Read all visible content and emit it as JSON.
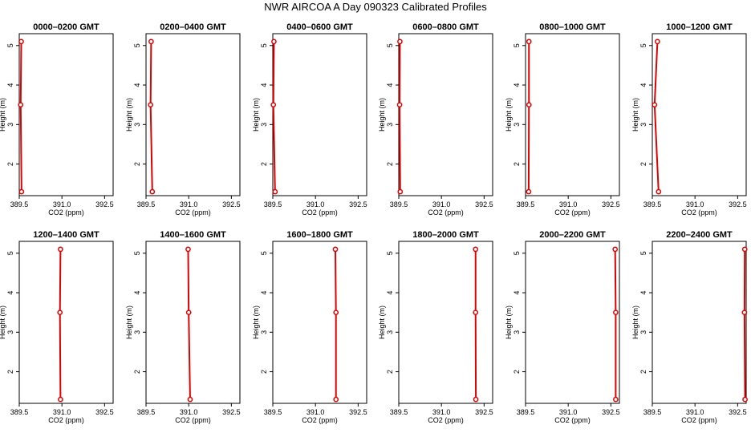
{
  "title": "NWR AIRCOA A  Day 090323  Calibrated Profiles",
  "colors": {
    "series": "#e00000",
    "frame": "#000000",
    "background": "#ffffff"
  },
  "chart_data": [
    {
      "type": "line",
      "title": "0000–0200 GMT",
      "xlabel": "CO2 (ppm)",
      "ylabel": "Height (m)",
      "xlim": [
        389.5,
        392.8
      ],
      "ylim": [
        1.2,
        5.3
      ],
      "xticks": [
        "389.5",
        "391.0",
        "392.5"
      ],
      "yticks": [
        "2",
        "3",
        "4",
        "5"
      ],
      "series": [
        {
          "x": [
            389.57,
            389.55,
            389.58
          ],
          "y": [
            5.1,
            3.5,
            1.3
          ]
        }
      ]
    },
    {
      "type": "line",
      "title": "0200–0400 GMT",
      "xlabel": "CO2 (ppm)",
      "ylabel": "Height (m)",
      "xlim": [
        389.5,
        392.8
      ],
      "ylim": [
        1.2,
        5.3
      ],
      "xticks": [
        "389.5",
        "391.0",
        "392.5"
      ],
      "yticks": [
        "2",
        "3",
        "4",
        "5"
      ],
      "series": [
        {
          "x": [
            389.68,
            389.66,
            389.72
          ],
          "y": [
            5.1,
            3.5,
            1.3
          ]
        }
      ]
    },
    {
      "type": "line",
      "title": "0400–0600 GMT",
      "xlabel": "CO2 (ppm)",
      "ylabel": "Height (m)",
      "xlim": [
        389.5,
        392.8
      ],
      "ylim": [
        1.2,
        5.3
      ],
      "xticks": [
        "389.5",
        "391.0",
        "392.5"
      ],
      "yticks": [
        "2",
        "3",
        "4",
        "5"
      ],
      "series": [
        {
          "x": [
            389.54,
            389.52,
            389.58
          ],
          "y": [
            5.1,
            3.5,
            1.3
          ]
        }
      ]
    },
    {
      "type": "line",
      "title": "0600–0800 GMT",
      "xlabel": "CO2 (ppm)",
      "ylabel": "Height (m)",
      "xlim": [
        389.5,
        392.8
      ],
      "ylim": [
        1.2,
        5.3
      ],
      "xticks": [
        "389.5",
        "391.0",
        "392.5"
      ],
      "yticks": [
        "2",
        "3",
        "4",
        "5"
      ],
      "series": [
        {
          "x": [
            389.54,
            389.53,
            389.55
          ],
          "y": [
            5.1,
            3.5,
            1.3
          ]
        }
      ]
    },
    {
      "type": "line",
      "title": "0800–1000 GMT",
      "xlabel": "CO2 (ppm)",
      "ylabel": "Height (m)",
      "xlim": [
        389.5,
        392.8
      ],
      "ylim": [
        1.2,
        5.3
      ],
      "xticks": [
        "389.5",
        "391.0",
        "392.5"
      ],
      "yticks": [
        "2",
        "3",
        "4",
        "5"
      ],
      "series": [
        {
          "x": [
            389.62,
            389.62,
            389.61
          ],
          "y": [
            5.1,
            3.5,
            1.3
          ]
        }
      ]
    },
    {
      "type": "line",
      "title": "1000–1200 GMT",
      "xlabel": "CO2 (ppm)",
      "ylabel": "Height (m)",
      "xlim": [
        389.5,
        392.8
      ],
      "ylim": [
        1.2,
        5.3
      ],
      "xticks": [
        "389.5",
        "391.0",
        "392.5"
      ],
      "yticks": [
        "2",
        "3",
        "4",
        "5"
      ],
      "series": [
        {
          "x": [
            389.68,
            389.58,
            389.72
          ],
          "y": [
            5.1,
            3.5,
            1.3
          ]
        }
      ]
    },
    {
      "type": "line",
      "title": "1200–1400 GMT",
      "xlabel": "CO2 (ppm)",
      "ylabel": "Height (m)",
      "xlim": [
        389.5,
        392.8
      ],
      "ylim": [
        1.2,
        5.3
      ],
      "xticks": [
        "389.5",
        "391.0",
        "392.5"
      ],
      "yticks": [
        "2",
        "3",
        "4",
        "5"
      ],
      "series": [
        {
          "x": [
            390.95,
            390.93,
            390.95
          ],
          "y": [
            5.1,
            3.5,
            1.3
          ]
        }
      ]
    },
    {
      "type": "line",
      "title": "1400–1600 GMT",
      "xlabel": "CO2 (ppm)",
      "ylabel": "Height (m)",
      "xlim": [
        389.5,
        392.8
      ],
      "ylim": [
        1.2,
        5.3
      ],
      "xticks": [
        "389.5",
        "391.0",
        "392.5"
      ],
      "yticks": [
        "2",
        "3",
        "4",
        "5"
      ],
      "series": [
        {
          "x": [
            390.98,
            391.0,
            391.05
          ],
          "y": [
            5.1,
            3.5,
            1.3
          ]
        }
      ]
    },
    {
      "type": "line",
      "title": "1600–1800 GMT",
      "xlabel": "CO2 (ppm)",
      "ylabel": "Height (m)",
      "xlim": [
        389.5,
        392.8
      ],
      "ylim": [
        1.2,
        5.3
      ],
      "xticks": [
        "389.5",
        "391.0",
        "392.5"
      ],
      "yticks": [
        "2",
        "3",
        "4",
        "5"
      ],
      "series": [
        {
          "x": [
            391.7,
            391.72,
            391.72
          ],
          "y": [
            5.1,
            3.5,
            1.3
          ]
        }
      ]
    },
    {
      "type": "line",
      "title": "1800–2000 GMT",
      "xlabel": "CO2 (ppm)",
      "ylabel": "Height (m)",
      "xlim": [
        389.5,
        392.8
      ],
      "ylim": [
        1.2,
        5.3
      ],
      "xticks": [
        "389.5",
        "391.0",
        "392.5"
      ],
      "yticks": [
        "2",
        "3",
        "4",
        "5"
      ],
      "series": [
        {
          "x": [
            392.2,
            392.2,
            392.21
          ],
          "y": [
            5.1,
            3.5,
            1.3
          ]
        }
      ]
    },
    {
      "type": "line",
      "title": "2000–2200 GMT",
      "xlabel": "CO2 (ppm)",
      "ylabel": "Height (m)",
      "xlim": [
        389.5,
        392.8
      ],
      "ylim": [
        1.2,
        5.3
      ],
      "xticks": [
        "389.5",
        "391.0",
        "392.5"
      ],
      "yticks": [
        "2",
        "3",
        "4",
        "5"
      ],
      "series": [
        {
          "x": [
            392.65,
            392.67,
            392.67
          ],
          "y": [
            5.1,
            3.5,
            1.3
          ]
        }
      ]
    },
    {
      "type": "line",
      "title": "2200–2400 GMT",
      "xlabel": "CO2 (ppm)",
      "ylabel": "Height (m)",
      "xlim": [
        389.5,
        392.8
      ],
      "ylim": [
        1.2,
        5.3
      ],
      "xticks": [
        "389.5",
        "391.0",
        "392.5"
      ],
      "yticks": [
        "2",
        "3",
        "4",
        "5"
      ],
      "series": [
        {
          "x": [
            392.75,
            392.74,
            392.76
          ],
          "y": [
            5.1,
            3.5,
            1.3
          ]
        }
      ]
    }
  ]
}
